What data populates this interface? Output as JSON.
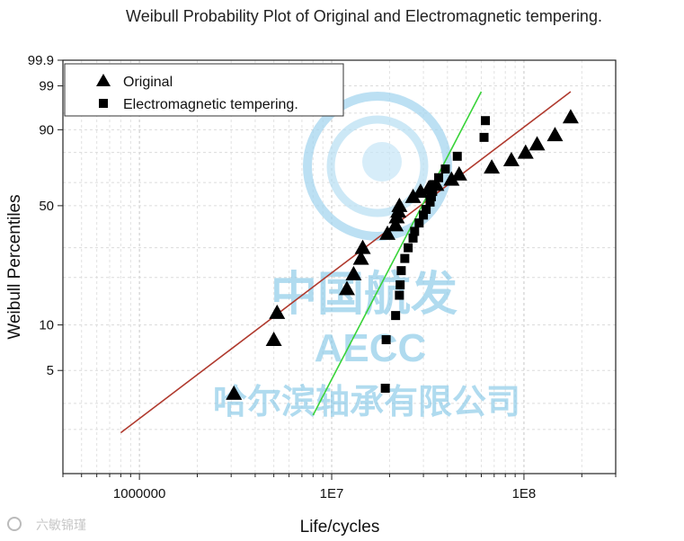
{
  "chart_data": {
    "type": "scatter",
    "title": "Weibull Probability Plot of Original and Electromagnetic tempering.",
    "xlabel": "Life/cycles",
    "ylabel": "Weibull Percentiles",
    "x_scale": "log",
    "y_scale": "weibull",
    "xlim": [
      400000,
      300000000
    ],
    "ylim": [
      1,
      99.9
    ],
    "x_ticks": [
      {
        "value": 1000000,
        "label": "1000000"
      },
      {
        "value": 10000000,
        "label": "1E7"
      },
      {
        "value": 100000000,
        "label": "1E8"
      }
    ],
    "y_ticks": [
      {
        "value": 5,
        "label": "5"
      },
      {
        "value": 10,
        "label": "10"
      },
      {
        "value": 50,
        "label": "50"
      },
      {
        "value": 90,
        "label": "90"
      },
      {
        "value": 99,
        "label": "99"
      },
      {
        "value": 99.9,
        "label": "99.9"
      }
    ],
    "grid": true,
    "legend_position": "top-left",
    "series": [
      {
        "name": "Original",
        "marker": "triangle",
        "color": "#000000",
        "fit_color": "#b03a2e",
        "fit_line": [
          [
            800000,
            1.9
          ],
          [
            175000000,
            98.5
          ]
        ],
        "x": [
          3100000,
          5000000,
          5200000,
          12000000,
          13000000,
          14200000,
          14500000,
          19500000,
          21500000,
          21800000,
          22200000,
          22500000,
          26500000,
          29000000,
          32000000,
          35000000,
          42000000,
          46000000,
          68000000,
          86000000,
          102000000,
          117000000,
          145000000,
          175000000
        ],
        "y": [
          3.5,
          8,
          12,
          17,
          21,
          26,
          30,
          36,
          40,
          44,
          47,
          50,
          55,
          58,
          60,
          62,
          65,
          68,
          72,
          76,
          80,
          84,
          88,
          94
        ]
      },
      {
        "name": "Electromagnetic tempering.",
        "marker": "square",
        "color": "#000000",
        "fit_color": "#39d339",
        "fit_line": [
          [
            8000000,
            2.5
          ],
          [
            60000000,
            98.5
          ]
        ],
        "x": [
          19000000,
          19200000,
          21500000,
          22500000,
          22700000,
          23000000,
          24000000,
          25000000,
          26500000,
          27000000,
          28500000,
          30000000,
          31000000,
          32500000,
          33000000,
          33500000,
          34000000,
          36000000,
          39000000,
          45000000,
          62000000,
          63000000
        ],
        "y": [
          3.8,
          8,
          11.5,
          15.5,
          18,
          22,
          26,
          30,
          34,
          37,
          41,
          45,
          48,
          52,
          55,
          58,
          62,
          66,
          71,
          78,
          87,
          93
        ]
      }
    ]
  },
  "watermark": {
    "line1": "中国航发",
    "line2": "AECC",
    "line3": "哈尔滨轴承有限公司",
    "color": "#7dc4e6"
  },
  "footer": {
    "brand": "六敏锦瑾"
  }
}
